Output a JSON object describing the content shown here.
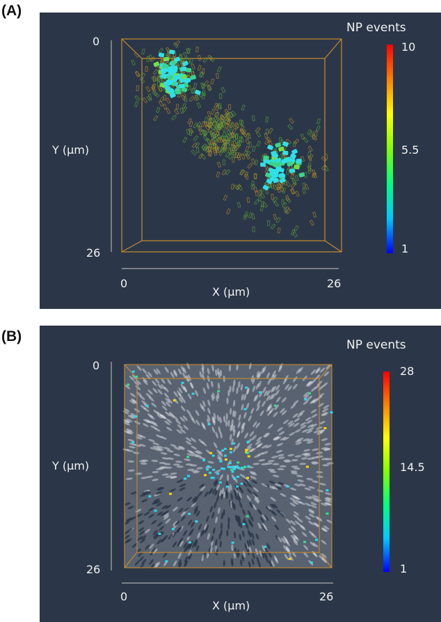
{
  "figure": {
    "panels": [
      {
        "tag": "(A)",
        "colorbar": {
          "title": "NP events",
          "max_label": "10",
          "mid_label": "5.5",
          "min_label": "1"
        },
        "y_axis": {
          "label": "Y (µm)",
          "top_tick": "0",
          "bottom_tick": "26"
        },
        "x_axis": {
          "label": "X (µm)",
          "left_tick": "0",
          "right_tick": "26"
        }
      },
      {
        "tag": "(B)",
        "colorbar": {
          "title": "NP events",
          "max_label": "28",
          "mid_label": "14.5",
          "min_label": "1"
        },
        "y_axis": {
          "label": "Y (µm)",
          "top_tick": "0",
          "bottom_tick": "26"
        },
        "x_axis": {
          "label": "X (µm)",
          "left_tick": "0",
          "right_tick": "26"
        }
      }
    ],
    "colors": {
      "panel_background": "#2b3748",
      "cube_edges": "#c98a2e",
      "colormap": [
        "#0000ff",
        "#00c8ff",
        "#00ff80",
        "#7fff00",
        "#ffff00",
        "#ff8000",
        "#ff0000"
      ]
    }
  }
}
